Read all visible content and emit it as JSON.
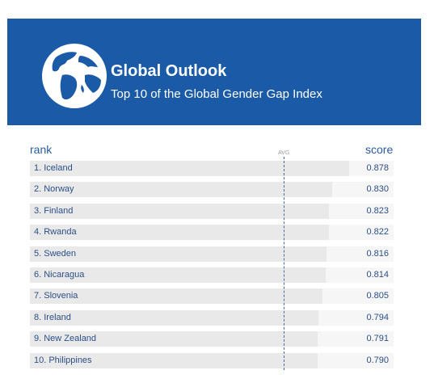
{
  "header": {
    "title": "Global Outlook",
    "subtitle": "Top 10 of the Global Gender Gap Index",
    "icon": "globe-icon",
    "background_color": "#1a5aa6"
  },
  "chart_data": {
    "type": "bar",
    "orientation": "horizontal",
    "title": "Global Outlook",
    "subtitle": "Top 10 of the Global Gender Gap Index",
    "rank_label": "rank",
    "score_label": "score",
    "avg_label": "AVG",
    "categories": [
      "1. Iceland",
      "2. Norway",
      "3. Finland",
      "4. Rwanda",
      "5. Sweden",
      "6. Nicaragua",
      "7. Slovenia",
      "8. Ireland",
      "9. New Zealand",
      "10. Philippines"
    ],
    "values": [
      0.878,
      0.83,
      0.823,
      0.822,
      0.816,
      0.814,
      0.805,
      0.794,
      0.791,
      0.79
    ],
    "value_labels": [
      "0.878",
      "0.830",
      "0.823",
      "0.822",
      "0.816",
      "0.814",
      "0.805",
      "0.794",
      "0.791",
      "0.790"
    ],
    "xlim": [
      0,
      0.89
    ],
    "average": 0.7,
    "colors": {
      "bar": "#e9e9e9",
      "track": "#f6f6f6",
      "text": "#2b4f86",
      "avg_line": "#4a6a9a"
    }
  }
}
